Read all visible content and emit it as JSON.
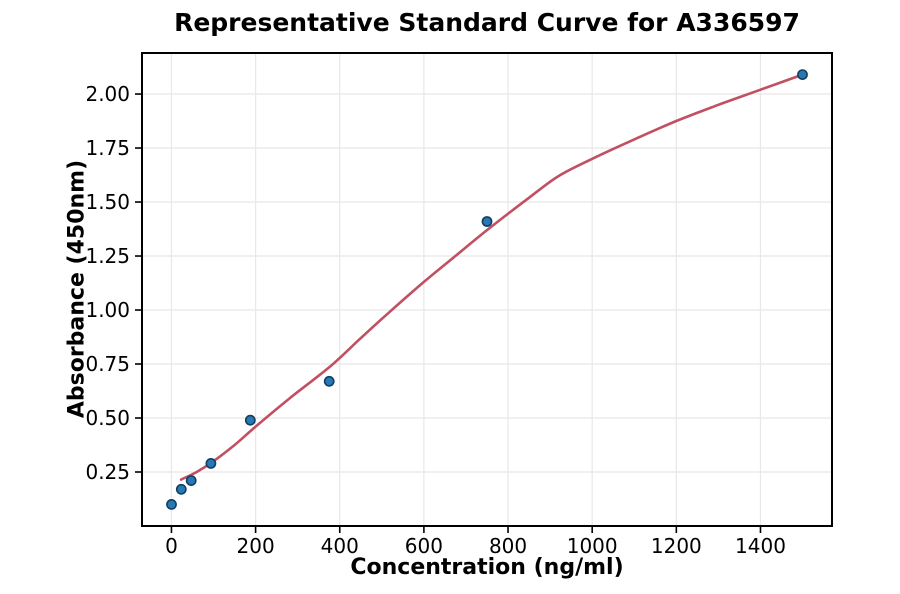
{
  "chart_data": {
    "type": "scatter",
    "title": "Representative Standard Curve for A336597",
    "xlabel": "Concentration (ng/ml)",
    "ylabel": "Absorbance (450nm)",
    "xlim": [
      -70,
      1570
    ],
    "ylim": [
      0,
      2.19
    ],
    "x_ticks": [
      0,
      200,
      400,
      600,
      800,
      1000,
      1200,
      1400
    ],
    "y_ticks": [
      0.25,
      0.5,
      0.75,
      1.0,
      1.25,
      1.5,
      1.75,
      2.0
    ],
    "grid": true,
    "legend": "none",
    "points": [
      {
        "x": 0,
        "y": 0.1
      },
      {
        "x": 23.4,
        "y": 0.17
      },
      {
        "x": 46.9,
        "y": 0.21
      },
      {
        "x": 93.8,
        "y": 0.29
      },
      {
        "x": 187.5,
        "y": 0.49
      },
      {
        "x": 375,
        "y": 0.67
      },
      {
        "x": 750,
        "y": 1.41
      },
      {
        "x": 1500,
        "y": 2.09
      }
    ],
    "fit_curve": [
      [
        23,
        0.215
      ],
      [
        60,
        0.25
      ],
      [
        100,
        0.3
      ],
      [
        150,
        0.375
      ],
      [
        200,
        0.46
      ],
      [
        280,
        0.59
      ],
      [
        375,
        0.735
      ],
      [
        450,
        0.87
      ],
      [
        515,
        0.985
      ],
      [
        600,
        1.13
      ],
      [
        675,
        1.25
      ],
      [
        750,
        1.37
      ],
      [
        850,
        1.52
      ],
      [
        920,
        1.62
      ],
      [
        1000,
        1.7
      ],
      [
        1100,
        1.79
      ],
      [
        1200,
        1.875
      ],
      [
        1300,
        1.95
      ],
      [
        1400,
        2.02
      ],
      [
        1500,
        2.09
      ]
    ],
    "colors": {
      "curve": "#c05062",
      "point_fill": "#2878b5",
      "point_edge": "#123f5f",
      "grid": "#e8e8e8",
      "frame": "#000000",
      "background": "#ffffff"
    }
  }
}
